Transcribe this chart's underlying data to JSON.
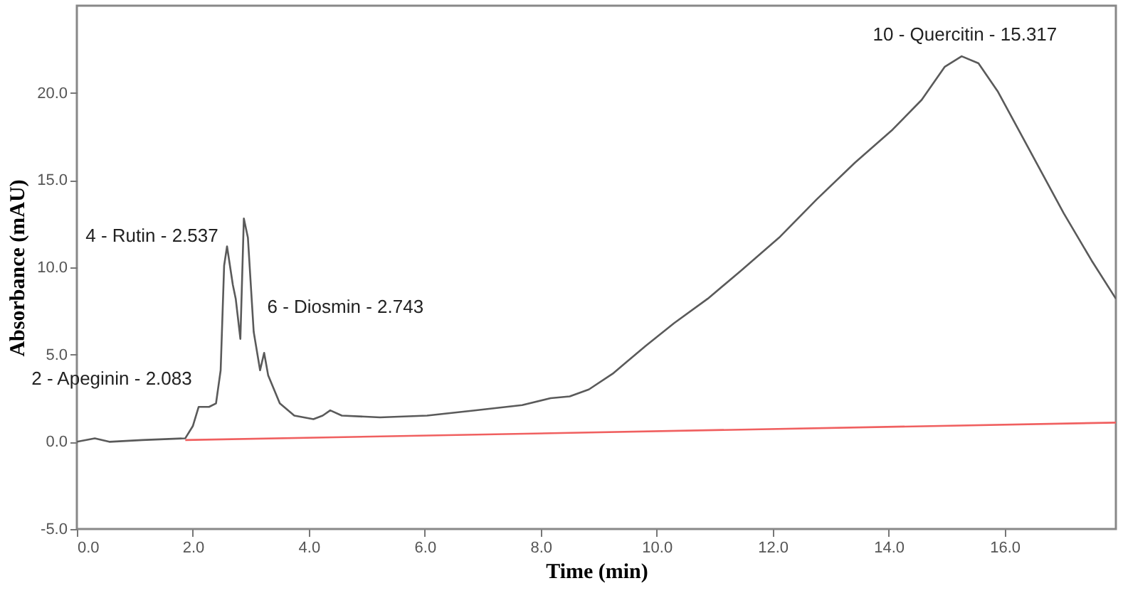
{
  "chart_data": {
    "type": "line",
    "xlabel": "Time (min)",
    "ylabel": "Absorbance (mAU)",
    "xlim": [
      0,
      17.92
    ],
    "ylim": [
      -5,
      25
    ],
    "xticks": [
      {
        "value": 0,
        "label": "0.0"
      },
      {
        "value": 2,
        "label": "2.0"
      },
      {
        "value": 4,
        "label": "4.0"
      },
      {
        "value": 6,
        "label": "6.0"
      },
      {
        "value": 8,
        "label": "8.0"
      },
      {
        "value": 10,
        "label": "10.0"
      },
      {
        "value": 12,
        "label": "12.0"
      },
      {
        "value": 14,
        "label": "14.0"
      },
      {
        "value": 16,
        "label": "16.0"
      }
    ],
    "yticks": [
      {
        "value": -5,
        "label": "-5.0"
      },
      {
        "value": 0,
        "label": "0.0"
      },
      {
        "value": 5,
        "label": "5.0"
      },
      {
        "value": 10,
        "label": "10.0"
      },
      {
        "value": 15,
        "label": "15.0"
      },
      {
        "value": 20,
        "label": "20.0"
      }
    ],
    "grid": false,
    "series": [
      {
        "color": "#5a5a5a",
        "x": [
          0,
          0.31,
          0.56,
          1.13,
          1.87,
          2.0,
          2.1,
          2.28,
          2.4,
          2.48,
          2.54,
          2.59,
          2.69,
          2.74,
          2.82,
          2.88,
          2.95,
          3.05,
          3.16,
          3.23,
          3.3,
          3.5,
          3.75,
          4.08,
          4.24,
          4.37,
          4.57,
          5.23,
          6.04,
          6.86,
          7.68,
          8.17,
          8.5,
          8.83,
          9.24,
          9.81,
          10.3,
          10.88,
          11.45,
          12.11,
          12.76,
          13.42,
          14.07,
          14.57,
          14.97,
          15.26,
          15.55,
          15.88,
          16.37,
          17.02,
          17.5,
          17.92
        ],
        "values": [
          0,
          0.2,
          0,
          0.1,
          0.2,
          0.9,
          2.0,
          2.0,
          2.2,
          4.1,
          10.1,
          11.2,
          9.0,
          8.2,
          5.9,
          12.8,
          11.7,
          6.3,
          4.1,
          5.1,
          3.8,
          2.2,
          1.5,
          1.3,
          1.5,
          1.8,
          1.5,
          1.4,
          1.5,
          1.8,
          2.1,
          2.5,
          2.6,
          3.0,
          3.9,
          5.5,
          6.8,
          8.2,
          9.8,
          11.7,
          13.9,
          16.0,
          17.9,
          19.6,
          21.5,
          22.1,
          21.7,
          20.1,
          17.1,
          13.1,
          10.4,
          8.2
        ]
      },
      {
        "color": "#f06060",
        "x": [
          1.87,
          17.92
        ],
        "values": [
          0.1,
          1.1
        ]
      }
    ],
    "annotations": [
      {
        "text": "2 - Apeginin - 2.083",
        "x": 2.083,
        "y": 1.9
      },
      {
        "text": "4 - Rutin - 2.537",
        "x": 2.537,
        "y": 10.1
      },
      {
        "text": "6 - Diosmin - 2.743",
        "x": 2.743,
        "y": 8.2
      },
      {
        "text": "10 - Quercitin - 15.317",
        "x": 15.317,
        "y": 22.1
      }
    ]
  }
}
